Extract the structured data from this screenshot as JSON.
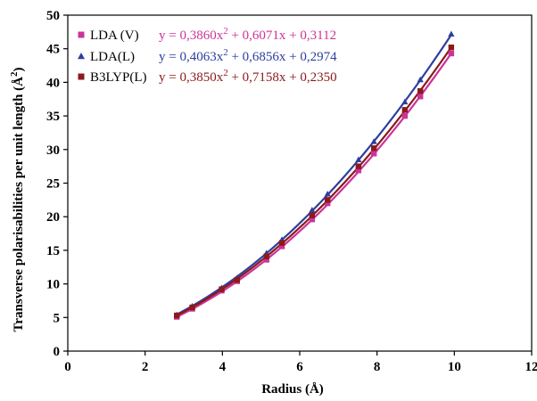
{
  "chart_data": {
    "type": "scatter",
    "xlabel": "Radius (Å)",
    "ylabel": "Transverse polarisabilities per unit length (Å",
    "ylabel_sup": "2",
    "ylabel_close": ")",
    "xlim": [
      0,
      12
    ],
    "ylim": [
      0,
      50
    ],
    "x_ticks": [
      "0",
      "2",
      "4",
      "6",
      "8",
      "10",
      "12"
    ],
    "y_ticks": [
      "0",
      "5",
      "10",
      "15",
      "20",
      "25",
      "30",
      "35",
      "40",
      "45",
      "50"
    ],
    "grid": false,
    "legend_position": "top-left",
    "series": [
      {
        "name": "LDA (V)",
        "color": "#cc3399",
        "marker": "square",
        "equation": {
          "pre": "y = 0,3860x",
          "sup": "2",
          "post": " + 0,6071x + 0,3112"
        },
        "coefficients": [
          0.386,
          0.6071,
          0.3112
        ],
        "x": [
          2.82,
          3.22,
          3.98,
          4.38,
          5.14,
          5.54,
          6.32,
          6.72,
          7.52,
          7.92,
          8.72,
          9.12,
          9.92
        ],
        "y": [
          5.1,
          6.3,
          9.0,
          10.4,
          13.6,
          15.6,
          19.6,
          22.0,
          26.9,
          29.4,
          35.0,
          37.9,
          44.3
        ]
      },
      {
        "name": "LDA(L)",
        "color": "#2d3f9e",
        "marker": "triangle",
        "equation": {
          "pre": "y = 0,4063x",
          "sup": "2",
          "post": " + 0,6856x + 0,2974"
        },
        "coefficients": [
          0.4063,
          0.6856,
          0.2974
        ],
        "x": [
          2.82,
          3.22,
          3.98,
          4.38,
          5.14,
          5.54,
          6.32,
          6.72,
          7.52,
          7.92,
          8.72,
          9.12,
          9.92
        ],
        "y": [
          5.4,
          6.7,
          9.4,
          10.9,
          14.6,
          16.6,
          21.0,
          23.4,
          28.5,
          31.2,
          37.1,
          40.4,
          47.2
        ]
      },
      {
        "name": "B3LYP(L)",
        "color": "#8b1a1a",
        "marker": "square",
        "equation": {
          "pre": "y = 0,3850x",
          "sup": "2",
          "post": " + 0,7158x + 0,2350"
        },
        "coefficients": [
          0.385,
          0.7158,
          0.235
        ],
        "x": [
          2.82,
          3.22,
          3.98,
          4.38,
          5.14,
          5.54,
          6.32,
          6.72,
          7.52,
          7.92,
          8.72,
          9.12,
          9.92
        ],
        "y": [
          5.3,
          6.5,
          9.2,
          10.6,
          14.1,
          16.1,
          20.2,
          22.5,
          27.5,
          30.2,
          35.9,
          38.7,
          45.2
        ]
      }
    ]
  }
}
